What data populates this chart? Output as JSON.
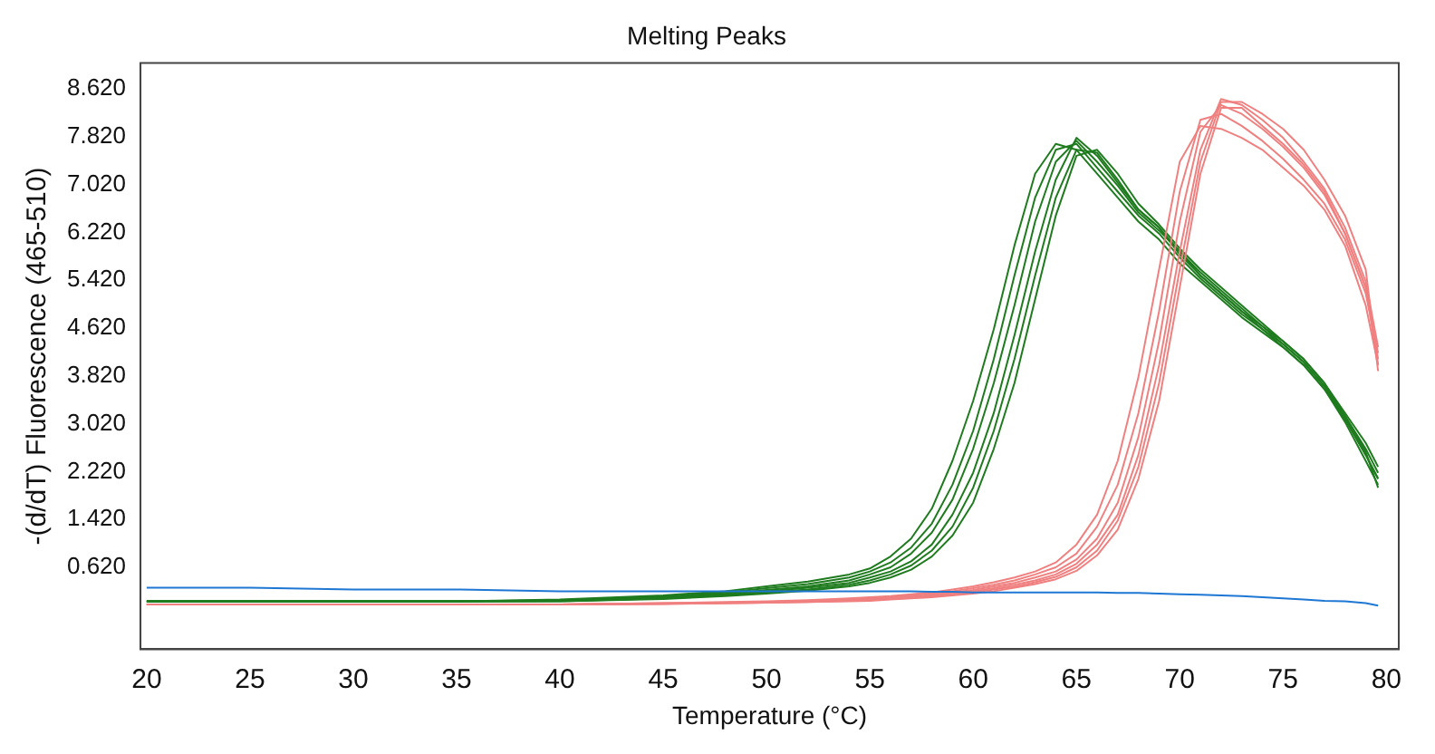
{
  "chart_data": {
    "type": "line",
    "title": "Melting Peaks",
    "xlabel": "Temperature (°C)",
    "ylabel": "-(d/dT) Fluorescence (465-510)",
    "x": [
      20,
      25,
      30,
      35,
      40,
      45,
      48,
      50,
      52,
      54,
      55,
      56,
      57,
      58,
      59,
      60,
      61,
      62,
      63,
      64,
      65,
      66,
      67,
      68,
      69,
      70,
      71,
      72,
      73,
      74,
      75,
      76,
      77,
      78,
      79,
      79.6
    ],
    "series": [
      {
        "color": "#1e7b1e",
        "values": [
          0.05,
          0.05,
          0.05,
          0.05,
          0.08,
          0.15,
          0.22,
          0.3,
          0.38,
          0.5,
          0.6,
          0.8,
          1.1,
          1.6,
          2.4,
          3.4,
          4.6,
          6.0,
          7.2,
          7.7,
          7.6,
          7.2,
          6.8,
          6.4,
          6.1,
          5.7,
          5.4,
          5.1,
          4.8,
          4.55,
          4.3,
          4.0,
          3.6,
          3.1,
          2.5,
          2.1
        ]
      },
      {
        "color": "#1e7b1e",
        "values": [
          0.05,
          0.05,
          0.05,
          0.05,
          0.07,
          0.13,
          0.2,
          0.27,
          0.34,
          0.45,
          0.55,
          0.7,
          0.95,
          1.35,
          2.0,
          2.9,
          4.1,
          5.5,
          6.8,
          7.6,
          7.7,
          7.3,
          6.9,
          6.5,
          6.2,
          5.8,
          5.45,
          5.15,
          4.85,
          4.6,
          4.35,
          4.05,
          3.65,
          3.15,
          2.6,
          2.2
        ]
      },
      {
        "color": "#1e7b1e",
        "values": [
          0.05,
          0.05,
          0.05,
          0.05,
          0.06,
          0.12,
          0.18,
          0.24,
          0.3,
          0.4,
          0.5,
          0.62,
          0.85,
          1.2,
          1.75,
          2.6,
          3.7,
          5.0,
          6.4,
          7.4,
          7.75,
          7.4,
          7.0,
          6.55,
          6.25,
          5.9,
          5.5,
          5.2,
          4.9,
          4.6,
          4.3,
          4.0,
          3.6,
          3.05,
          2.4,
          2.0
        ]
      },
      {
        "color": "#1e7b1e",
        "values": [
          0.05,
          0.05,
          0.05,
          0.05,
          0.06,
          0.1,
          0.16,
          0.22,
          0.28,
          0.36,
          0.45,
          0.55,
          0.72,
          1.0,
          1.5,
          2.2,
          3.2,
          4.5,
          5.9,
          7.1,
          7.8,
          7.5,
          7.05,
          6.6,
          6.3,
          5.85,
          5.5,
          5.2,
          4.9,
          4.65,
          4.4,
          4.1,
          3.7,
          3.2,
          2.7,
          2.3
        ]
      },
      {
        "color": "#1e7b1e",
        "values": [
          0.05,
          0.05,
          0.05,
          0.05,
          0.05,
          0.1,
          0.15,
          0.2,
          0.25,
          0.33,
          0.4,
          0.5,
          0.65,
          0.9,
          1.3,
          1.95,
          2.9,
          4.1,
          5.5,
          6.8,
          7.6,
          7.55,
          7.1,
          6.6,
          6.3,
          5.9,
          5.55,
          5.25,
          4.95,
          4.65,
          4.35,
          4.05,
          3.65,
          3.1,
          2.5,
          2.1
        ]
      },
      {
        "color": "#1e7b1e",
        "values": [
          0.05,
          0.05,
          0.05,
          0.05,
          0.05,
          0.09,
          0.14,
          0.18,
          0.23,
          0.3,
          0.36,
          0.45,
          0.58,
          0.8,
          1.15,
          1.7,
          2.6,
          3.7,
          5.1,
          6.5,
          7.5,
          7.6,
          7.2,
          6.7,
          6.35,
          5.95,
          5.6,
          5.3,
          5.0,
          4.7,
          4.4,
          4.1,
          3.7,
          3.15,
          2.55,
          1.95
        ]
      },
      {
        "color": "#f08080",
        "values": [
          0,
          0,
          0,
          0,
          0,
          0.02,
          0.04,
          0.05,
          0.07,
          0.1,
          0.12,
          0.14,
          0.17,
          0.2,
          0.25,
          0.3,
          0.37,
          0.45,
          0.55,
          0.7,
          1.0,
          1.5,
          2.4,
          3.8,
          5.6,
          7.4,
          8.0,
          7.95,
          7.8,
          7.6,
          7.3,
          7.0,
          6.6,
          6.0,
          5.0,
          4.0
        ]
      },
      {
        "color": "#f08080",
        "values": [
          0,
          0,
          0,
          0,
          0,
          0.02,
          0.03,
          0.04,
          0.06,
          0.09,
          0.1,
          0.12,
          0.15,
          0.18,
          0.22,
          0.27,
          0.33,
          0.4,
          0.5,
          0.62,
          0.85,
          1.3,
          2.0,
          3.2,
          4.9,
          6.9,
          8.1,
          8.2,
          8.0,
          7.75,
          7.45,
          7.1,
          6.7,
          6.1,
          5.2,
          4.2
        ]
      },
      {
        "color": "#f08080",
        "values": [
          0,
          0,
          0,
          0,
          0,
          0.01,
          0.03,
          0.04,
          0.05,
          0.08,
          0.09,
          0.11,
          0.13,
          0.16,
          0.2,
          0.24,
          0.3,
          0.36,
          0.45,
          0.55,
          0.75,
          1.1,
          1.7,
          2.8,
          4.4,
          6.4,
          7.9,
          8.35,
          8.2,
          7.95,
          7.65,
          7.3,
          6.85,
          6.2,
          5.3,
          4.1
        ]
      },
      {
        "color": "#f08080",
        "values": [
          0,
          0,
          0,
          0,
          0,
          0.01,
          0.02,
          0.03,
          0.05,
          0.07,
          0.08,
          0.1,
          0.12,
          0.15,
          0.18,
          0.22,
          0.27,
          0.33,
          0.4,
          0.5,
          0.68,
          1.0,
          1.5,
          2.5,
          4.0,
          5.9,
          7.6,
          8.45,
          8.35,
          8.1,
          7.8,
          7.4,
          6.95,
          6.3,
          5.4,
          4.3
        ]
      },
      {
        "color": "#f08080",
        "values": [
          0,
          0,
          0,
          0,
          0,
          0.01,
          0.02,
          0.03,
          0.04,
          0.06,
          0.07,
          0.09,
          0.11,
          0.13,
          0.16,
          0.2,
          0.25,
          0.3,
          0.37,
          0.46,
          0.62,
          0.9,
          1.4,
          2.3,
          3.7,
          5.6,
          7.4,
          8.4,
          8.4,
          8.2,
          7.95,
          7.6,
          7.1,
          6.5,
          5.6,
          3.9
        ]
      },
      {
        "color": "#f08080",
        "values": [
          0,
          0,
          0,
          0,
          0,
          0.01,
          0.02,
          0.03,
          0.04,
          0.05,
          0.06,
          0.08,
          0.1,
          0.12,
          0.15,
          0.18,
          0.22,
          0.28,
          0.34,
          0.42,
          0.56,
          0.82,
          1.25,
          2.1,
          3.4,
          5.3,
          7.2,
          8.3,
          8.3,
          8.0,
          7.7,
          7.35,
          6.9,
          6.2,
          5.3,
          4.0
        ]
      },
      {
        "color": "#1f77d4",
        "values": [
          0.28,
          0.28,
          0.25,
          0.25,
          0.22,
          0.22,
          0.22,
          0.22,
          0.22,
          0.22,
          0.22,
          0.22,
          0.22,
          0.21,
          0.21,
          0.2,
          0.2,
          0.2,
          0.2,
          0.2,
          0.2,
          0.2,
          0.19,
          0.19,
          0.18,
          0.17,
          0.16,
          0.15,
          0.14,
          0.12,
          0.1,
          0.08,
          0.06,
          0.05,
          0.02,
          -0.02
        ]
      }
    ],
    "xlim": [
      19.7,
      80.6
    ],
    "xticks": [
      20,
      25,
      30,
      35,
      40,
      45,
      50,
      55,
      60,
      65,
      70,
      75,
      80
    ],
    "ylim": [
      -0.75,
      9.05
    ],
    "yticks": [
      {
        "value": 0.62,
        "label": "0.620"
      },
      {
        "value": 1.42,
        "label": "1.420"
      },
      {
        "value": 2.22,
        "label": "2.220"
      },
      {
        "value": 3.02,
        "label": "3.020"
      },
      {
        "value": 3.82,
        "label": "3.820"
      },
      {
        "value": 4.62,
        "label": "4.620"
      },
      {
        "value": 5.42,
        "label": "5.420"
      },
      {
        "value": 6.22,
        "label": "6.220"
      },
      {
        "value": 7.02,
        "label": "7.020"
      },
      {
        "value": 7.82,
        "label": "7.820"
      },
      {
        "value": 8.62,
        "label": "8.620"
      }
    ],
    "grid": false,
    "legend": false,
    "marker": "none",
    "line_style": "solid"
  }
}
